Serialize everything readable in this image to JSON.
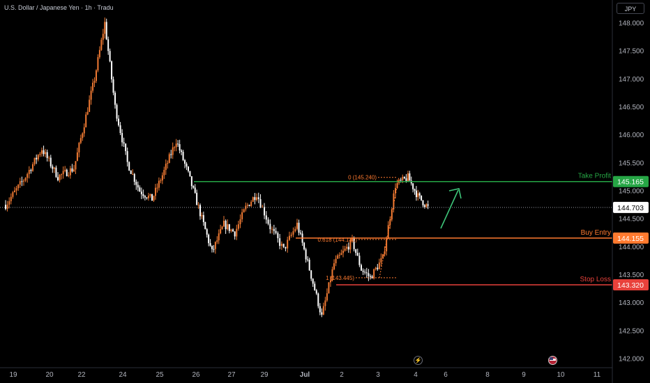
{
  "header": {
    "title": "U.S. Dollar / Japanese Yen · 1h · Tradu"
  },
  "currency_label": "JPY",
  "colors": {
    "background": "#000000",
    "candle_up": "#f07a33",
    "candle_down": "#ffffff",
    "take_profit": "#26a645",
    "buy_entry": "#ff7a2f",
    "stop_loss": "#e8413b",
    "arrow": "#3ec67a",
    "current_price": "#ffffff"
  },
  "icons": {
    "event": "lightning-icon",
    "country": "us-flag-icon"
  },
  "chart_data": {
    "type": "candlestick",
    "title": "U.S. Dollar / Japanese Yen · 1h · Tradu",
    "xlabel": "",
    "ylabel": "",
    "ylim": [
      141.85,
      148.25
    ],
    "x_ticks": [
      "19",
      "20",
      "22",
      "24",
      "25",
      "26",
      "27",
      "29",
      "Jul",
      "2",
      "3",
      "4",
      "6",
      "8",
      "9",
      "10",
      "11"
    ],
    "y_ticks": [
      "142.000",
      "142.500",
      "143.000",
      "143.500",
      "144.000",
      "144.500",
      "145.000",
      "145.500",
      "146.000",
      "146.500",
      "147.000",
      "147.500",
      "148.000"
    ],
    "current_price": {
      "value": 144.703,
      "label": "144.703"
    },
    "levels": [
      {
        "name": "Take Profit",
        "price": 145.165,
        "label": "145.165"
      },
      {
        "name": "Buy Entry",
        "price": 144.155,
        "label": "144.155"
      },
      {
        "name": "Stop Loss",
        "price": 143.32,
        "label": "143.320"
      }
    ],
    "fib_levels": [
      {
        "label": "0 (145.240)",
        "price": 145.24
      },
      {
        "label": "0.618 (144.130)",
        "price": 144.13
      },
      {
        "label": "1 (143.445)",
        "price": 143.445
      }
    ],
    "price_path": [
      {
        "x": "19",
        "price": 144.75
      },
      {
        "x": "19",
        "price": 145.2
      },
      {
        "x": "20",
        "price": 145.75
      },
      {
        "x": "20",
        "price": 145.25
      },
      {
        "x": "22",
        "price": 145.4
      },
      {
        "x": "22",
        "price": 146.2
      },
      {
        "x": "22",
        "price": 147.0
      },
      {
        "x": "22",
        "price": 148.0
      },
      {
        "x": "24",
        "price": 146.5
      },
      {
        "x": "24",
        "price": 145.5
      },
      {
        "x": "24",
        "price": 145.0
      },
      {
        "x": "25",
        "price": 144.85
      },
      {
        "x": "25",
        "price": 145.35
      },
      {
        "x": "25",
        "price": 145.9
      },
      {
        "x": "26",
        "price": 145.3
      },
      {
        "x": "26",
        "price": 144.6
      },
      {
        "x": "26",
        "price": 143.9
      },
      {
        "x": "27",
        "price": 144.4
      },
      {
        "x": "27",
        "price": 144.25
      },
      {
        "x": "27",
        "price": 144.7
      },
      {
        "x": "29",
        "price": 144.95
      },
      {
        "x": "29",
        "price": 144.35
      },
      {
        "x": "29",
        "price": 143.95
      },
      {
        "x": "Jul",
        "price": 144.4
      },
      {
        "x": "Jul",
        "price": 143.6
      },
      {
        "x": "Jul",
        "price": 142.75
      },
      {
        "x": "2",
        "price": 143.7
      },
      {
        "x": "2",
        "price": 143.9
      },
      {
        "x": "2",
        "price": 144.1
      },
      {
        "x": "2",
        "price": 143.6
      },
      {
        "x": "3",
        "price": 143.45
      },
      {
        "x": "3",
        "price": 143.8
      },
      {
        "x": "3",
        "price": 145.1
      },
      {
        "x": "4",
        "price": 145.24
      },
      {
        "x": "4",
        "price": 144.9
      },
      {
        "x": "4",
        "price": 144.703
      }
    ]
  }
}
